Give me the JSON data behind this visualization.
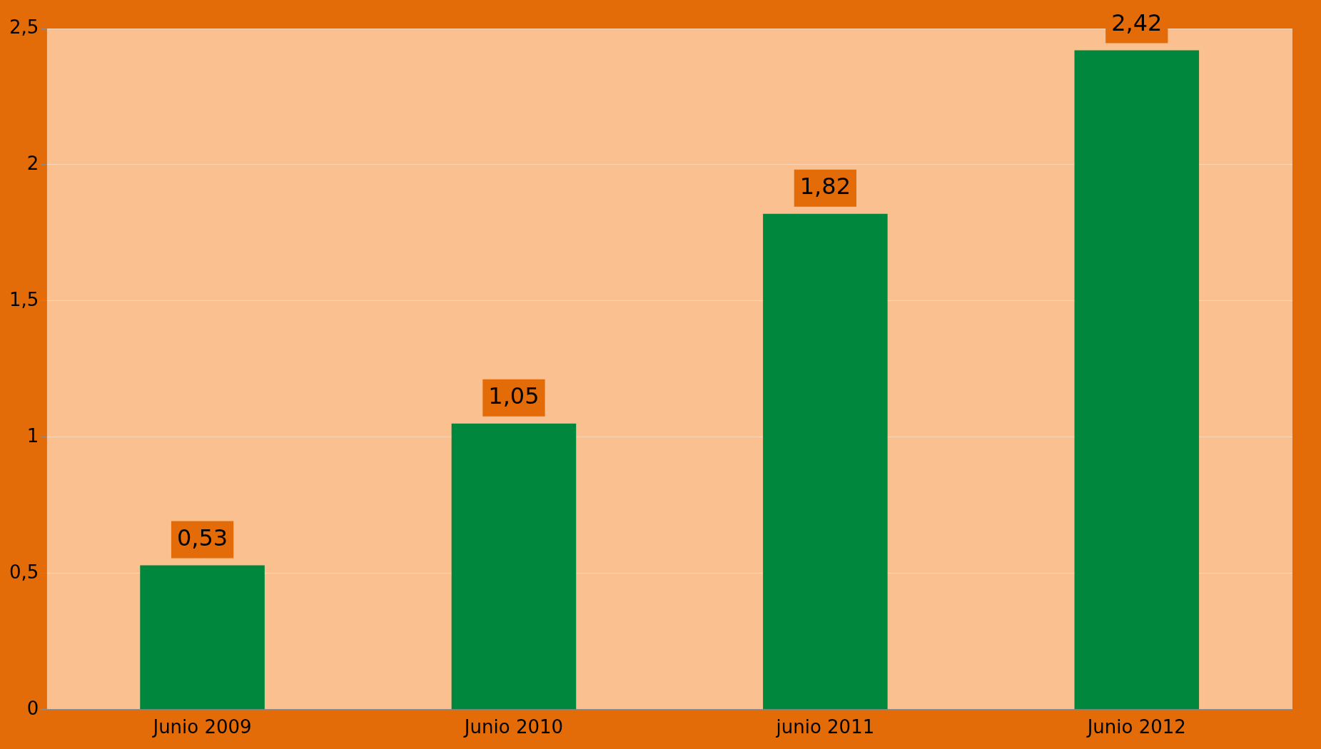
{
  "chart_data": {
    "type": "bar",
    "categories": [
      "Junio 2009",
      "Junio 2010",
      "junio 2011",
      "Junio 2012"
    ],
    "values": [
      0.53,
      1.05,
      1.82,
      2.42
    ],
    "value_labels": [
      "0,53",
      "1,05",
      "1,82",
      "2,42"
    ],
    "color": "#00873e",
    "ylim": [
      0,
      2.5
    ],
    "yticks": [
      {
        "value": 0,
        "label": "0"
      },
      {
        "value": 0.5,
        "label": "0,5"
      },
      {
        "value": 1,
        "label": "1"
      },
      {
        "value": 1.5,
        "label": "1,5"
      },
      {
        "value": 2,
        "label": "2"
      },
      {
        "value": 2.5,
        "label": "2,5"
      }
    ],
    "grid": "y",
    "legend": false
  }
}
